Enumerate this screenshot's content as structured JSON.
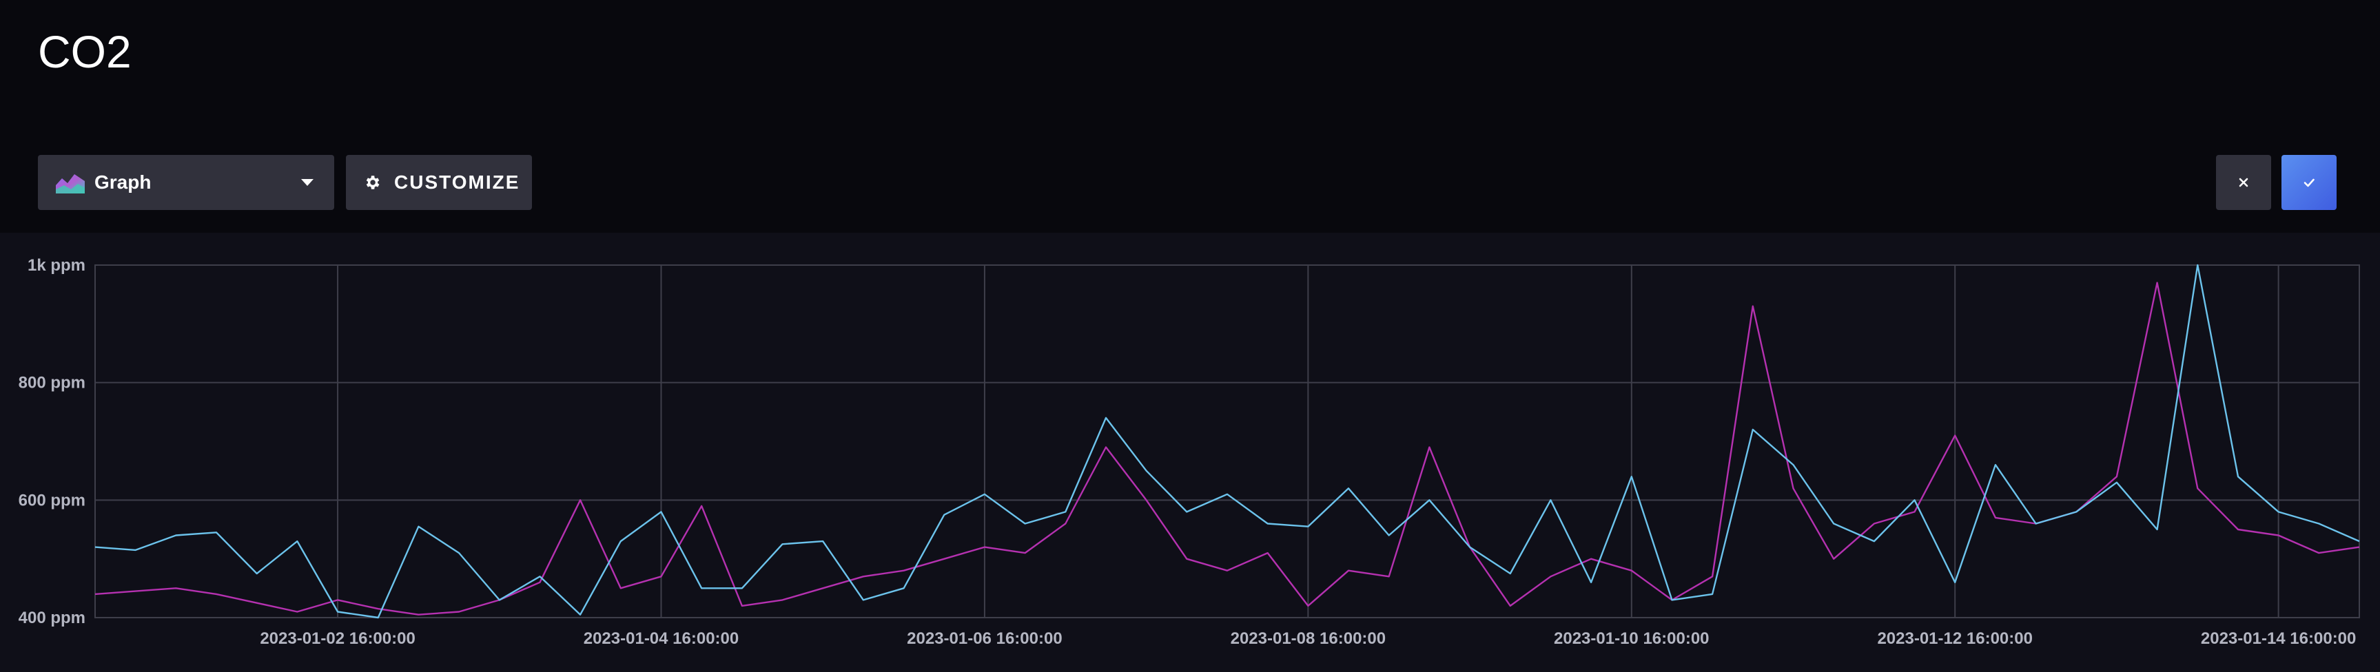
{
  "header": {
    "title": "CO2"
  },
  "toolbar": {
    "view_select_label": "Graph",
    "customize_label": "CUSTOMIZE",
    "close_icon": "close-icon",
    "apply_icon": "check-icon"
  },
  "colors": {
    "background": "#0f0f18",
    "header_background": "#08080d",
    "button_background": "#31313c",
    "apply_button": "#4f6fe8",
    "grid": "#3e3e4a",
    "series_blue": "#6cc3ec",
    "series_magenta": "#b531b0",
    "tick_label": "#b4b6c2"
  },
  "chart_data": {
    "type": "line",
    "title": "",
    "xlabel": "",
    "ylabel": "",
    "ylim": [
      400,
      1000
    ],
    "yticks": [
      {
        "value": 400,
        "label": "400 ppm"
      },
      {
        "value": 600,
        "label": "600 ppm"
      },
      {
        "value": 800,
        "label": "800 ppm"
      },
      {
        "value": 1000,
        "label": "1k ppm"
      }
    ],
    "xlim": [
      "2023-01-01 04:00",
      "2023-01-15 04:00"
    ],
    "xticks": [
      {
        "value": "2023-01-02 16:00",
        "label": "2023-01-02 16:00:00"
      },
      {
        "value": "2023-01-04 16:00",
        "label": "2023-01-04 16:00:00"
      },
      {
        "value": "2023-01-06 16:00",
        "label": "2023-01-06 16:00:00"
      },
      {
        "value": "2023-01-08 16:00",
        "label": "2023-01-08 16:00:00"
      },
      {
        "value": "2023-01-10 16:00",
        "label": "2023-01-10 16:00:00"
      },
      {
        "value": "2023-01-12 16:00",
        "label": "2023-01-12 16:00:00"
      },
      {
        "value": "2023-01-14 16:00",
        "label": "2023-01-14 16:00:00"
      }
    ],
    "grid": true,
    "legend": "none",
    "series": [
      {
        "color": "#6cc3ec",
        "x": [
          "2023-01-01 04:00",
          "2023-01-01 10:00",
          "2023-01-01 16:00",
          "2023-01-01 22:00",
          "2023-01-02 04:00",
          "2023-01-02 10:00",
          "2023-01-02 16:00",
          "2023-01-02 22:00",
          "2023-01-03 04:00",
          "2023-01-03 10:00",
          "2023-01-03 16:00",
          "2023-01-03 22:00",
          "2023-01-04 04:00",
          "2023-01-04 10:00",
          "2023-01-04 16:00",
          "2023-01-04 22:00",
          "2023-01-05 04:00",
          "2023-01-05 10:00",
          "2023-01-05 16:00",
          "2023-01-05 22:00",
          "2023-01-06 04:00",
          "2023-01-06 10:00",
          "2023-01-06 16:00",
          "2023-01-06 22:00",
          "2023-01-07 04:00",
          "2023-01-07 10:00",
          "2023-01-07 16:00",
          "2023-01-07 22:00",
          "2023-01-08 04:00",
          "2023-01-08 10:00",
          "2023-01-08 16:00",
          "2023-01-08 22:00",
          "2023-01-09 04:00",
          "2023-01-09 10:00",
          "2023-01-09 16:00",
          "2023-01-09 22:00",
          "2023-01-10 04:00",
          "2023-01-10 10:00",
          "2023-01-10 16:00",
          "2023-01-10 22:00",
          "2023-01-11 04:00",
          "2023-01-11 10:00",
          "2023-01-11 16:00",
          "2023-01-11 22:00",
          "2023-01-12 04:00",
          "2023-01-12 10:00",
          "2023-01-12 16:00",
          "2023-01-12 22:00",
          "2023-01-13 04:00",
          "2023-01-13 10:00",
          "2023-01-13 16:00",
          "2023-01-13 22:00",
          "2023-01-14 04:00",
          "2023-01-14 10:00",
          "2023-01-14 16:00",
          "2023-01-14 22:00",
          "2023-01-15 04:00"
        ],
        "values": [
          520,
          515,
          540,
          545,
          475,
          530,
          410,
          400,
          555,
          510,
          430,
          470,
          405,
          530,
          580,
          450,
          450,
          525,
          530,
          430,
          450,
          575,
          610,
          560,
          580,
          740,
          650,
          580,
          610,
          560,
          555,
          620,
          540,
          600,
          520,
          475,
          600,
          460,
          640,
          430,
          440,
          720,
          660,
          560,
          530,
          600,
          460,
          660,
          560,
          580,
          630,
          550,
          1000,
          640,
          580,
          560,
          530
        ]
      },
      {
        "color": "#b531b0",
        "x": [
          "2023-01-01 04:00",
          "2023-01-01 10:00",
          "2023-01-01 16:00",
          "2023-01-01 22:00",
          "2023-01-02 04:00",
          "2023-01-02 10:00",
          "2023-01-02 16:00",
          "2023-01-02 22:00",
          "2023-01-03 04:00",
          "2023-01-03 10:00",
          "2023-01-03 16:00",
          "2023-01-03 22:00",
          "2023-01-04 04:00",
          "2023-01-04 10:00",
          "2023-01-04 16:00",
          "2023-01-04 22:00",
          "2023-01-05 04:00",
          "2023-01-05 10:00",
          "2023-01-05 16:00",
          "2023-01-05 22:00",
          "2023-01-06 04:00",
          "2023-01-06 10:00",
          "2023-01-06 16:00",
          "2023-01-06 22:00",
          "2023-01-07 04:00",
          "2023-01-07 10:00",
          "2023-01-07 16:00",
          "2023-01-07 22:00",
          "2023-01-08 04:00",
          "2023-01-08 10:00",
          "2023-01-08 16:00",
          "2023-01-08 22:00",
          "2023-01-09 04:00",
          "2023-01-09 10:00",
          "2023-01-09 16:00",
          "2023-01-09 22:00",
          "2023-01-10 04:00",
          "2023-01-10 10:00",
          "2023-01-10 16:00",
          "2023-01-10 22:00",
          "2023-01-11 04:00",
          "2023-01-11 10:00",
          "2023-01-11 16:00",
          "2023-01-11 22:00",
          "2023-01-12 04:00",
          "2023-01-12 10:00",
          "2023-01-12 16:00",
          "2023-01-12 22:00",
          "2023-01-13 04:00",
          "2023-01-13 10:00",
          "2023-01-13 16:00",
          "2023-01-13 22:00",
          "2023-01-14 04:00",
          "2023-01-14 10:00",
          "2023-01-14 16:00",
          "2023-01-14 22:00",
          "2023-01-15 04:00"
        ],
        "values": [
          440,
          445,
          450,
          440,
          425,
          410,
          430,
          415,
          405,
          410,
          430,
          460,
          600,
          450,
          470,
          590,
          420,
          430,
          450,
          470,
          480,
          500,
          520,
          510,
          560,
          690,
          600,
          500,
          480,
          510,
          420,
          480,
          470,
          690,
          520,
          420,
          470,
          500,
          480,
          430,
          470,
          930,
          620,
          500,
          560,
          580,
          710,
          570,
          560,
          580,
          640,
          970,
          620,
          550,
          540,
          510,
          520
        ]
      }
    ]
  }
}
